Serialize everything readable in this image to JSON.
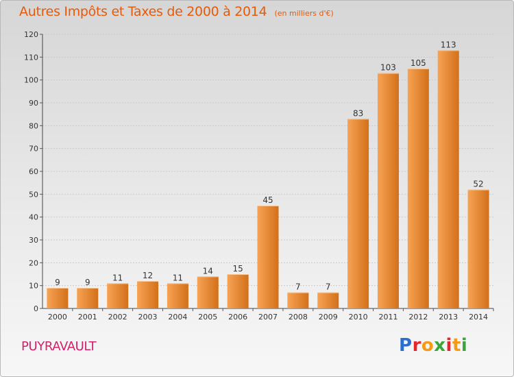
{
  "title": "Autres Impôts et Taxes de 2000 à 2014",
  "unit_label": "(en milliers d'€)",
  "commune": "PUYRAVAULT",
  "logo": {
    "text": "Proxiti",
    "letter_colors": [
      "#2a6fcf",
      "#e0282d",
      "#f39a16",
      "#3aa53a",
      "#e0282d",
      "#f39a16",
      "#3aa53a"
    ]
  },
  "colors": {
    "bar_light": "#f7a354",
    "bar_dark": "#d3701a",
    "title": "#e65a0a",
    "commune": "#d0216a"
  },
  "chart_data": {
    "type": "bar",
    "categories": [
      "2000",
      "2001",
      "2002",
      "2003",
      "2004",
      "2005",
      "2006",
      "2007",
      "2008",
      "2009",
      "2010",
      "2011",
      "2012",
      "2013",
      "2014"
    ],
    "values": [
      9,
      9,
      11,
      12,
      11,
      14,
      15,
      45,
      7,
      7,
      83,
      103,
      105,
      113,
      52
    ],
    "data_labels": [
      "9",
      "9",
      "11",
      "12",
      "11",
      "14",
      "15",
      "45",
      "7",
      "7",
      "83",
      "103",
      "105",
      "113",
      "52"
    ],
    "ylim": [
      0,
      120
    ],
    "yticks": [
      0,
      10,
      20,
      30,
      40,
      50,
      60,
      70,
      80,
      90,
      100,
      110,
      120
    ],
    "grid": true,
    "legend": "none"
  }
}
